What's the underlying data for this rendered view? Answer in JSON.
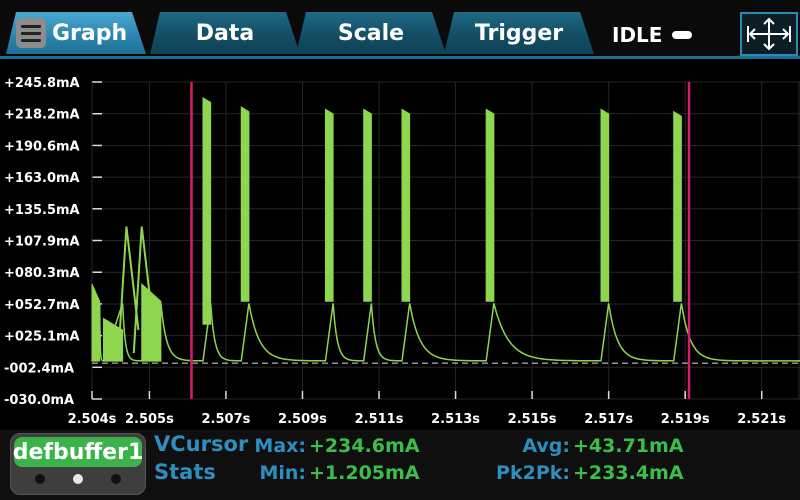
{
  "tabs": {
    "graph": "Graph",
    "data": "Data",
    "scale": "Scale",
    "trigger": "Trigger"
  },
  "status": "IDLE",
  "icons": {
    "menu": "hamburger-menu-icon",
    "status": "idle-indicator-icon",
    "expand": "expand-arrows-icon"
  },
  "colors": {
    "trace": "#8fd64f",
    "cursor": "#d0206a",
    "tab_active": "#3a9ac4",
    "tab_inactive": "#17566f",
    "buffer": "#3bb34a",
    "stat_label": "#2e8fbf",
    "stat_value": "#3bbf4a"
  },
  "chart_data": {
    "type": "line",
    "ylim": [
      -30.0,
      245.8
    ],
    "xlim": [
      2.504,
      2.5225
    ],
    "y_ticks": [
      "+245.8mA",
      "+218.2mA",
      "+190.6mA",
      "+163.0mA",
      "+135.5mA",
      "+107.9mA",
      "+080.3mA",
      "+052.7mA",
      "+025.1mA",
      "-002.4mA",
      "-030.0mA"
    ],
    "y_tick_values": [
      245.8,
      218.2,
      190.6,
      163.0,
      135.5,
      107.9,
      80.3,
      52.7,
      25.1,
      -2.4,
      -30.0
    ],
    "x_ticks": [
      "2.504s",
      "2.505s",
      "2.507s",
      "2.509s",
      "2.511s",
      "2.513s",
      "2.515s",
      "2.517s",
      "2.519s",
      "2.521s"
    ],
    "x_tick_values": [
      2.504,
      2.5055,
      2.5075,
      2.5095,
      2.5115,
      2.5135,
      2.5155,
      2.5175,
      2.5195,
      2.5215
    ],
    "grid": true,
    "baseline": 1.2,
    "cursors": [
      2.5066,
      2.5196
    ],
    "series": [
      {
        "color": "#8fd64f",
        "bursts": [
          {
            "start": 2.504,
            "end": 2.5042,
            "low": 3,
            "high": 70,
            "decay_to": 55
          },
          {
            "start": 2.5043,
            "end": 2.5048,
            "low": 3,
            "high": 40,
            "decay_to": 30
          },
          {
            "start": 2.5053,
            "end": 2.5058,
            "low": 3,
            "high": 70,
            "decay_to": 55
          },
          {
            "start": 2.5069,
            "end": 2.5071,
            "low": 35,
            "high": 232,
            "decay_to": 228
          },
          {
            "start": 2.5079,
            "end": 2.5081,
            "low": 55,
            "high": 224,
            "decay_to": 220
          },
          {
            "start": 2.5101,
            "end": 2.5103,
            "low": 55,
            "high": 222,
            "decay_to": 218
          },
          {
            "start": 2.5111,
            "end": 2.5113,
            "low": 55,
            "high": 222,
            "decay_to": 218
          },
          {
            "start": 2.5121,
            "end": 2.5123,
            "low": 55,
            "high": 222,
            "decay_to": 218
          },
          {
            "start": 2.5143,
            "end": 2.5145,
            "low": 55,
            "high": 222,
            "decay_to": 218
          },
          {
            "start": 2.5173,
            "end": 2.5175,
            "low": 55,
            "high": 222,
            "decay_to": 218
          },
          {
            "start": 2.5192,
            "end": 2.5194,
            "low": 55,
            "high": 220,
            "decay_to": 216
          }
        ],
        "spikes": [
          {
            "t": 2.5049,
            "peak": 120,
            "min": 10
          },
          {
            "t": 2.5053,
            "peak": 120,
            "min": 10
          }
        ]
      }
    ]
  },
  "stats": {
    "buffer_name": "defbuffer1",
    "title_line1": "VCursor",
    "title_line2": "Stats",
    "max_label": "Max:",
    "max_value": "+234.6mA",
    "min_label": "Min:",
    "min_value": "+1.205mA",
    "avg_label": "Avg:",
    "avg_value": "+43.71mA",
    "pk2pk_label": "Pk2Pk:",
    "pk2pk_value": "+233.4mA"
  },
  "pager": {
    "count": 3,
    "active": 1
  }
}
